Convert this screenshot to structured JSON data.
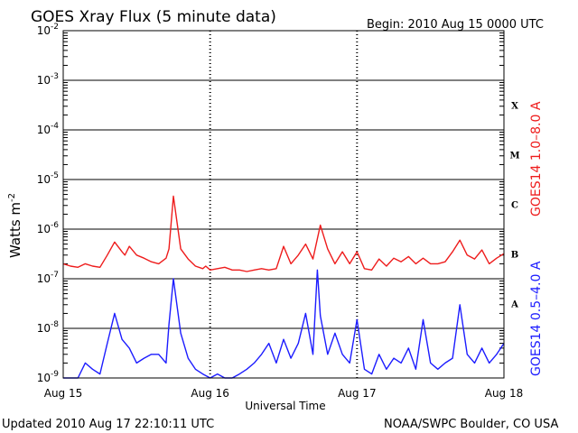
{
  "chart_data": {
    "type": "line",
    "title": "GOES Xray Flux (5 minute data)",
    "begin_label": "Begin:  2010 Aug 15 0000 UTC",
    "ylabel": "Watts m",
    "ylabel_exp": "-2",
    "xlabel": "Universal Time",
    "y_scale": "log",
    "ylim": [
      1e-09,
      0.01
    ],
    "y_ticks": [
      {
        "base": "10",
        "exp": "-2",
        "value": 0.01
      },
      {
        "base": "10",
        "exp": "-3",
        "value": 0.001
      },
      {
        "base": "10",
        "exp": "-4",
        "value": 0.0001
      },
      {
        "base": "10",
        "exp": "-5",
        "value": 1e-05
      },
      {
        "base": "10",
        "exp": "-6",
        "value": 1e-06
      },
      {
        "base": "10",
        "exp": "-7",
        "value": 1e-07
      },
      {
        "base": "10",
        "exp": "-8",
        "value": 1e-08
      },
      {
        "base": "10",
        "exp": "-9",
        "value": 1e-09
      }
    ],
    "x_unit": "days since 2010 Aug 15 0000 UTC",
    "xlim": [
      0,
      3
    ],
    "x_ticks": [
      {
        "label": "Aug 15",
        "value": 0
      },
      {
        "label": "Aug 16",
        "value": 1
      },
      {
        "label": "Aug 17",
        "value": 2
      },
      {
        "label": "Aug 18",
        "value": 3
      }
    ],
    "flare_classes": [
      {
        "label": "X",
        "value": 0.000316
      },
      {
        "label": "M",
        "value": 3.16e-05
      },
      {
        "label": "C",
        "value": 3.16e-06
      },
      {
        "label": "B",
        "value": 3.16e-07
      },
      {
        "label": "A",
        "value": 3.16e-08
      }
    ],
    "grid": true,
    "series": [
      {
        "name": "GOES14 1.0–8.0 A",
        "color": "#ee1c1c",
        "x": [
          0.0,
          0.05,
          0.1,
          0.15,
          0.2,
          0.25,
          0.3,
          0.35,
          0.4,
          0.42,
          0.45,
          0.5,
          0.55,
          0.6,
          0.65,
          0.7,
          0.72,
          0.75,
          0.8,
          0.85,
          0.9,
          0.95,
          0.97,
          1.0,
          1.05,
          1.1,
          1.15,
          1.2,
          1.25,
          1.3,
          1.35,
          1.4,
          1.45,
          1.5,
          1.55,
          1.6,
          1.65,
          1.7,
          1.75,
          1.8,
          1.85,
          1.9,
          1.95,
          2.0,
          2.05,
          2.1,
          2.15,
          2.2,
          2.25,
          2.3,
          2.35,
          2.4,
          2.45,
          2.5,
          2.55,
          2.6,
          2.65,
          2.7,
          2.75,
          2.8,
          2.85,
          2.9,
          2.95,
          3.0
        ],
        "y": [
          2e-07,
          1.8e-07,
          1.7e-07,
          2e-07,
          1.8e-07,
          1.7e-07,
          3e-07,
          5.5e-07,
          3.5e-07,
          3e-07,
          4.5e-07,
          3e-07,
          2.6e-07,
          2.2e-07,
          2e-07,
          2.6e-07,
          4e-07,
          4.6e-06,
          4e-07,
          2.5e-07,
          1.8e-07,
          1.6e-07,
          1.8e-07,
          1.5e-07,
          1.6e-07,
          1.7e-07,
          1.5e-07,
          1.5e-07,
          1.4e-07,
          1.5e-07,
          1.6e-07,
          1.5e-07,
          1.6e-07,
          4.5e-07,
          2e-07,
          3e-07,
          5e-07,
          2.5e-07,
          1.2e-06,
          4e-07,
          2e-07,
          3.5e-07,
          2e-07,
          3.5e-07,
          1.6e-07,
          1.5e-07,
          2.5e-07,
          1.8e-07,
          2.6e-07,
          2.2e-07,
          2.8e-07,
          2e-07,
          2.6e-07,
          2e-07,
          2e-07,
          2.2e-07,
          3.5e-07,
          6e-07,
          3e-07,
          2.5e-07,
          3.8e-07,
          2e-07,
          2.6e-07,
          3.2e-07
        ]
      },
      {
        "name": "GOES14 0.5–4.0 A",
        "color": "#1c1cff",
        "x": [
          0.0,
          0.05,
          0.1,
          0.15,
          0.2,
          0.25,
          0.3,
          0.35,
          0.4,
          0.45,
          0.5,
          0.55,
          0.6,
          0.65,
          0.7,
          0.72,
          0.75,
          0.8,
          0.85,
          0.9,
          0.95,
          1.0,
          1.05,
          1.1,
          1.15,
          1.2,
          1.25,
          1.3,
          1.35,
          1.4,
          1.45,
          1.5,
          1.55,
          1.6,
          1.65,
          1.7,
          1.73,
          1.75,
          1.8,
          1.85,
          1.9,
          1.95,
          2.0,
          2.05,
          2.1,
          2.15,
          2.2,
          2.25,
          2.3,
          2.35,
          2.4,
          2.45,
          2.5,
          2.55,
          2.6,
          2.65,
          2.7,
          2.75,
          2.8,
          2.85,
          2.9,
          2.95,
          3.0
        ],
        "y": [
          1e-09,
          1e-09,
          1e-09,
          2e-09,
          1.5e-09,
          1.2e-09,
          5e-09,
          2e-08,
          6e-09,
          4e-09,
          2e-09,
          2.5e-09,
          3e-09,
          3e-09,
          2e-09,
          1.2e-08,
          1e-07,
          8e-09,
          2.5e-09,
          1.5e-09,
          1.2e-09,
          1e-09,
          1.2e-09,
          1e-09,
          1e-09,
          1.2e-09,
          1.5e-09,
          2e-09,
          3e-09,
          5e-09,
          2e-09,
          6e-09,
          2.5e-09,
          5e-09,
          2e-08,
          3e-09,
          1.5e-07,
          1.8e-08,
          3e-09,
          8e-09,
          3e-09,
          2e-09,
          1.5e-08,
          1.5e-09,
          1.2e-09,
          3e-09,
          1.5e-09,
          2.5e-09,
          2e-09,
          4e-09,
          1.5e-09,
          1.5e-08,
          2e-09,
          1.5e-09,
          2e-09,
          2.5e-09,
          3e-08,
          3e-09,
          2e-09,
          4e-09,
          2e-09,
          3e-09,
          5e-09
        ]
      }
    ]
  },
  "footer": {
    "updated": "Updated 2010 Aug 17 22:10:11 UTC",
    "credit": "NOAA/SWPC Boulder, CO USA"
  }
}
